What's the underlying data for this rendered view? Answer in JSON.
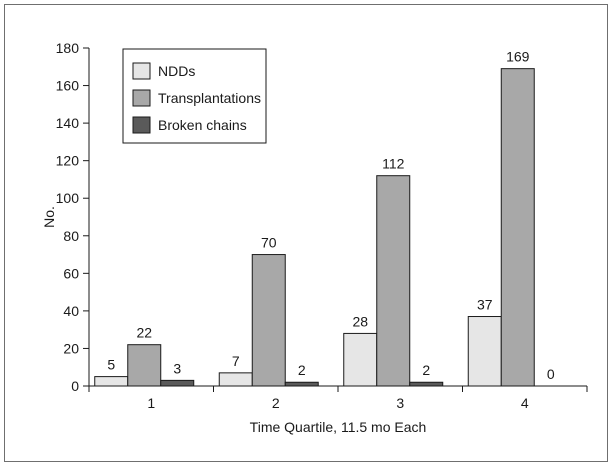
{
  "chart_data": {
    "type": "bar",
    "xlabel": "Time Quartile, 11.5 mo Each",
    "ylabel": "No.",
    "ylim": [
      0,
      180
    ],
    "yticks": [
      0,
      20,
      40,
      60,
      80,
      100,
      120,
      140,
      160,
      180
    ],
    "categories": [
      "1",
      "2",
      "3",
      "4"
    ],
    "series": [
      {
        "name": "NDDs",
        "color": "#e6e6e6",
        "values": [
          5,
          7,
          28,
          37
        ]
      },
      {
        "name": "Transplantations",
        "color": "#a8a8a8",
        "values": [
          22,
          70,
          112,
          169
        ]
      },
      {
        "name": "Broken chains",
        "color": "#5a5a5a",
        "values": [
          3,
          2,
          2,
          0
        ]
      }
    ],
    "legend_position": "top-left",
    "grid": false
  }
}
